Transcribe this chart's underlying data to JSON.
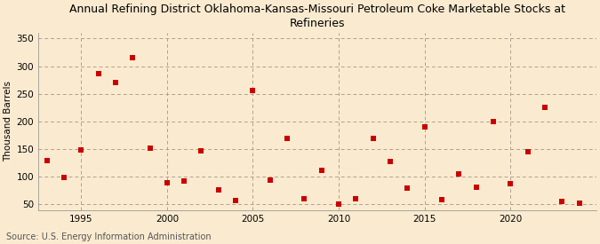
{
  "title": "Annual Refining District Oklahoma-Kansas-Missouri Petroleum Coke Marketable Stocks at\nRefineries",
  "ylabel": "Thousand Barrels",
  "source": "Source: U.S. Energy Information Administration",
  "background_color": "#faebd0",
  "plot_background_color": "#faebd0",
  "marker_color": "#cc0000",
  "marker": "s",
  "marker_size": 16,
  "xlim": [
    1992.5,
    2025
  ],
  "ylim": [
    40,
    360
  ],
  "yticks": [
    50,
    100,
    150,
    200,
    250,
    300,
    350
  ],
  "xticks": [
    1995,
    2000,
    2005,
    2010,
    2015,
    2020
  ],
  "grid_color": "#b0a090",
  "years": [
    1993,
    1994,
    1995,
    1996,
    1997,
    1998,
    1999,
    2000,
    2001,
    2002,
    2003,
    2004,
    2005,
    2006,
    2007,
    2008,
    2009,
    2010,
    2011,
    2012,
    2013,
    2014,
    2015,
    2016,
    2017,
    2018,
    2019,
    2020,
    2021,
    2022,
    2023,
    2024
  ],
  "values": [
    130,
    99,
    148,
    287,
    270,
    315,
    152,
    89,
    93,
    147,
    77,
    57,
    256,
    94,
    170,
    60,
    111,
    50,
    61,
    170,
    128,
    80,
    191,
    58,
    105,
    82,
    200,
    87,
    145,
    226,
    55,
    52
  ]
}
